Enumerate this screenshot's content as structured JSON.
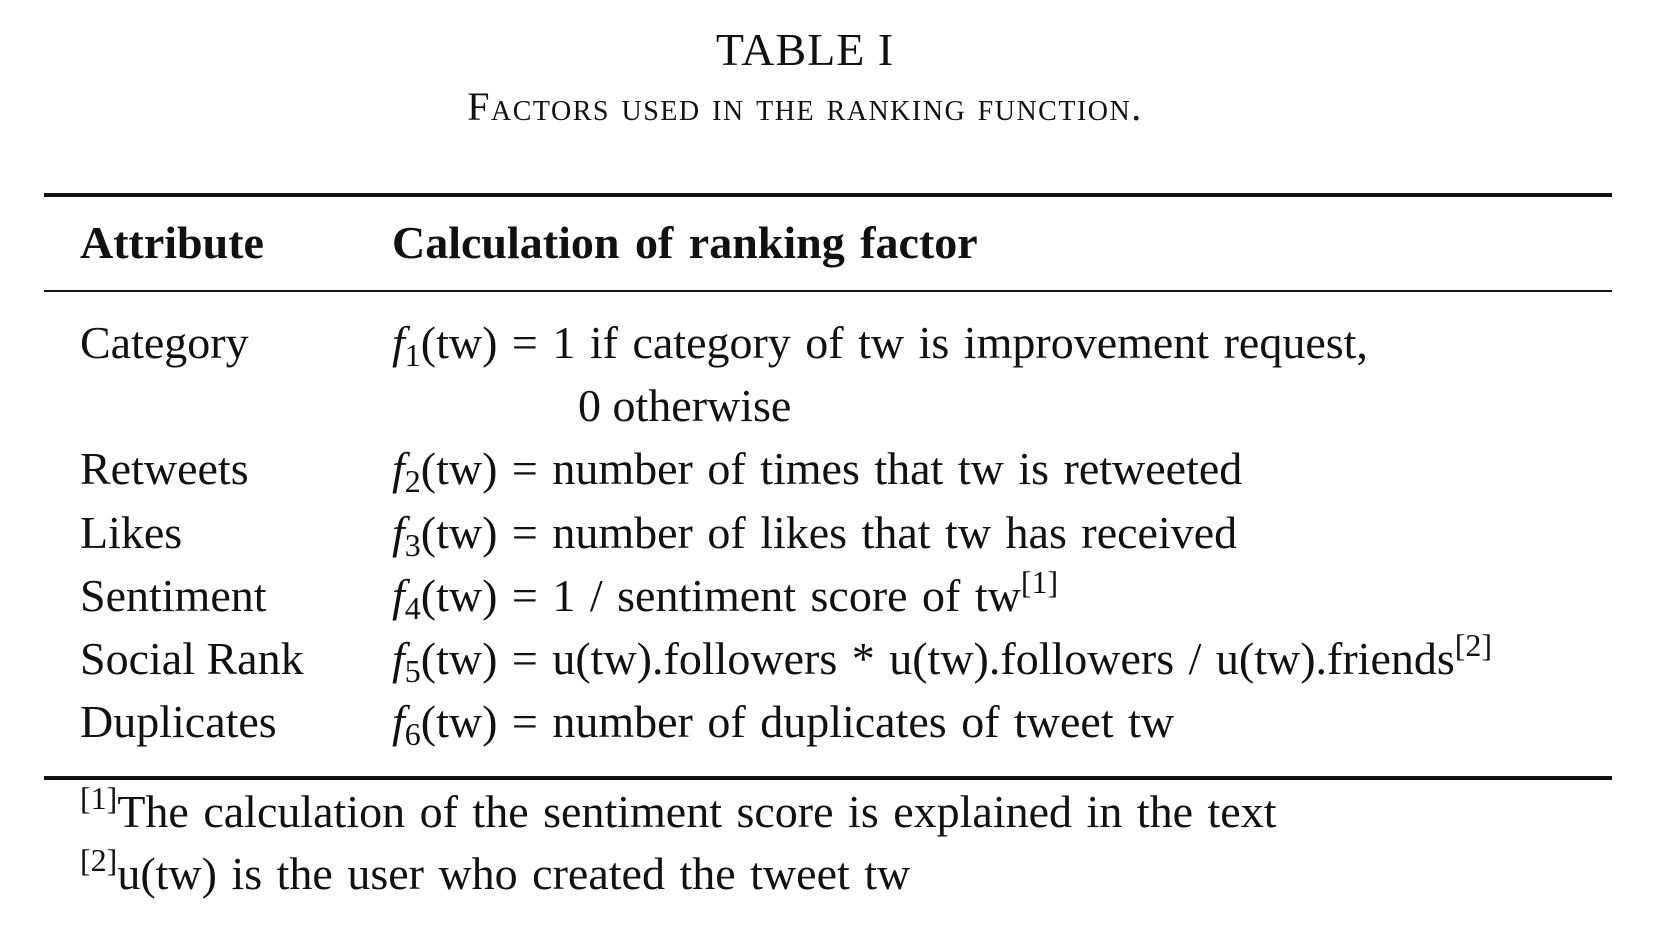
{
  "caption": {
    "title": "TABLE I",
    "subtitle": "Factors used in the ranking function."
  },
  "table": {
    "headers": {
      "attribute": "Attribute",
      "calculation": "Calculation of ranking factor"
    },
    "rows": [
      {
        "attribute": "Category",
        "fn_symbol": "f",
        "fn_index": "1",
        "formula": "(tw) = 1 if category of tw is improvement request,",
        "formula_cont": "0 otherwise",
        "sup": ""
      },
      {
        "attribute": "Retweets",
        "fn_symbol": "f",
        "fn_index": "2",
        "formula": "(tw) = number of times that tw is retweeted",
        "sup": ""
      },
      {
        "attribute": "Likes",
        "fn_symbol": "f",
        "fn_index": "3",
        "formula": "(tw) = number of likes that tw has received",
        "sup": ""
      },
      {
        "attribute": "Sentiment",
        "fn_symbol": "f",
        "fn_index": "4",
        "formula": "(tw) = 1 / sentiment score of tw",
        "sup": "[1]"
      },
      {
        "attribute": "Social Rank",
        "fn_symbol": "f",
        "fn_index": "5",
        "formula": "(tw) = u(tw).followers * u(tw).followers / u(tw).friends",
        "sup": "[2]"
      },
      {
        "attribute": "Duplicates",
        "fn_symbol": "f",
        "fn_index": "6",
        "formula": "(tw) = number of duplicates of tweet tw",
        "sup": ""
      }
    ]
  },
  "footnotes": [
    {
      "mark": "[1]",
      "text": "The calculation of the sentiment score is explained in the text"
    },
    {
      "mark": "[2]",
      "text": "u(tw) is the user who created the tweet tw"
    }
  ]
}
